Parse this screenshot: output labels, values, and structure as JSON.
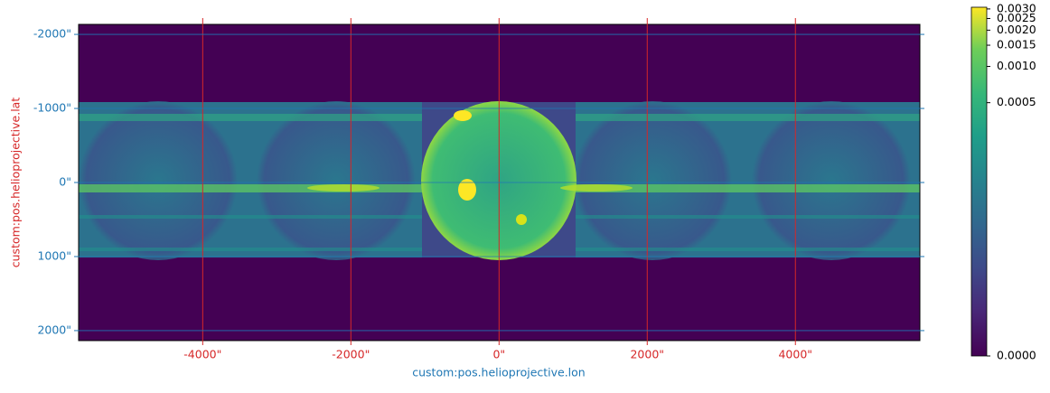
{
  "chart_data": {
    "type": "image",
    "xlabel": "custom:pos.helioprojective.lon",
    "ylabel": "custom:pos.helioprojective.lat",
    "xlim": [
      -5675,
      5680
    ],
    "ylim": [
      2135,
      -2135
    ],
    "xticks": [
      {
        "value": -4000,
        "label": "-4000\""
      },
      {
        "value": -2000,
        "label": "-2000\""
      },
      {
        "value": 0,
        "label": "0\""
      },
      {
        "value": 2000,
        "label": "2000\""
      },
      {
        "value": 4000,
        "label": "4000\""
      }
    ],
    "yticks": [
      {
        "value": -2000,
        "label": "-2000\""
      },
      {
        "value": -1000,
        "label": "-1000\""
      },
      {
        "value": 0,
        "label": "0\""
      },
      {
        "value": 1000,
        "label": "1000\""
      },
      {
        "value": 2000,
        "label": "2000\""
      }
    ],
    "x_color": "#d62728",
    "y_color": "#1f77b4",
    "grid": true,
    "colormap": "viridis",
    "colorbar": {
      "vlim": [
        0,
        0.0031
      ],
      "stretch": "asinh",
      "stretch_a": 7.9e-06,
      "ticks": [
        {
          "value": 0,
          "label": "0.0000"
        },
        {
          "value": 0.0005,
          "label": "0.0005"
        },
        {
          "value": 0.001,
          "label": "0.0010"
        },
        {
          "value": 0.0015,
          "label": "0.0015"
        },
        {
          "value": 0.002,
          "label": "0.0020"
        },
        {
          "value": 0.0025,
          "label": "0.0025"
        },
        {
          "value": 0.003,
          "label": "0.0030"
        }
      ]
    }
  }
}
